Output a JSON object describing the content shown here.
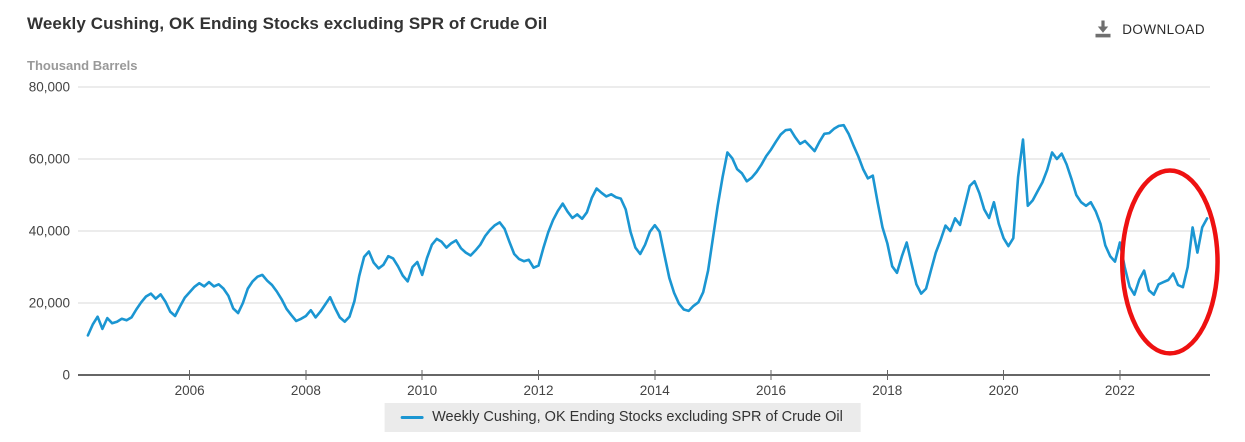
{
  "header": {
    "title": "Weekly Cushing, OK Ending Stocks excluding SPR of Crude Oil",
    "units_label": "Thousand Barrels",
    "download_label": "DOWNLOAD"
  },
  "colors": {
    "line": "#1b96d2",
    "annotation": "#ee1111",
    "grid": "#d8d8d8",
    "axis": "#666666",
    "tick_label": "#444444",
    "title": "#333333",
    "units": "#999999",
    "legend_bg": "#ebebeb",
    "legend_text": "#333333",
    "download_icon": "#6f6f6f"
  },
  "chart_data": {
    "type": "line",
    "title": "Weekly Cushing, OK Ending Stocks excluding SPR of Crude Oil",
    "xlabel": "",
    "ylabel": "Thousand Barrels",
    "grid": true,
    "legend_position": "bottom",
    "xlim": [
      2004.08,
      2023.55
    ],
    "ylim": [
      0,
      80000
    ],
    "y_ticks": [
      0,
      20000,
      40000,
      60000,
      80000
    ],
    "y_tick_labels": [
      "0",
      "20,000",
      "40,000",
      "60,000",
      "80,000"
    ],
    "x_ticks": [
      2006,
      2008,
      2010,
      2012,
      2014,
      2016,
      2018,
      2020,
      2022
    ],
    "x_start": 2004.25,
    "x_step": 0.0833333,
    "series": [
      {
        "name": "Weekly Cushing, OK Ending Stocks excluding SPR of Crude Oil",
        "values": [
          11000,
          14000,
          16200,
          12800,
          15800,
          14400,
          14800,
          15600,
          15200,
          16000,
          18200,
          20200,
          21800,
          22600,
          21200,
          22400,
          20400,
          17600,
          16400,
          19000,
          21500,
          23000,
          24500,
          25500,
          24600,
          25800,
          24600,
          25200,
          24000,
          22000,
          18500,
          17200,
          20000,
          24000,
          26000,
          27300,
          27800,
          26200,
          25000,
          23200,
          21000,
          18400,
          16600,
          15000,
          15600,
          16400,
          18000,
          16000,
          17600,
          19600,
          21600,
          18600,
          16000,
          14800,
          16200,
          20500,
          27500,
          32800,
          34300,
          31200,
          29600,
          30600,
          33000,
          32400,
          30200,
          27600,
          26000,
          30000,
          31400,
          27800,
          32500,
          36200,
          37800,
          37000,
          35400,
          36600,
          37400,
          35200,
          34000,
          33200,
          34600,
          36200,
          38600,
          40300,
          41600,
          42400,
          40600,
          37000,
          33600,
          32200,
          31600,
          32000,
          29800,
          30400,
          35200,
          39600,
          43000,
          45600,
          47600,
          45400,
          43600,
          44600,
          43400,
          45200,
          49200,
          51800,
          50600,
          49600,
          50200,
          49400,
          49000,
          46000,
          39800,
          35400,
          33600,
          36200,
          39800,
          41600,
          39800,
          33400,
          27000,
          22800,
          19800,
          18200,
          17800,
          19200,
          20200,
          23000,
          29000,
          38000,
          47000,
          55000,
          61800,
          60200,
          57200,
          56000,
          53800,
          54800,
          56400,
          58400,
          60800,
          62600,
          64800,
          66800,
          68000,
          68200,
          66000,
          64200,
          65000,
          63600,
          62200,
          64800,
          67000,
          67200,
          68400,
          69200,
          69400,
          67000,
          63800,
          60800,
          57200,
          54600,
          55400,
          48000,
          41000,
          36600,
          30200,
          28400,
          33000,
          36800,
          31000,
          25200,
          22600,
          24000,
          29000,
          34000,
          37500,
          41500,
          40000,
          43500,
          41700,
          47000,
          52500,
          53800,
          50500,
          46000,
          43600,
          48000,
          42000,
          38000,
          35800,
          38000,
          55000,
          65400,
          47000,
          48500,
          51000,
          53500,
          57000,
          61800,
          60000,
          61500,
          58500,
          54500,
          50000,
          48000,
          47000,
          48000,
          45500,
          42000,
          36000,
          33000,
          31500,
          36800,
          30000,
          24500,
          22300,
          26500,
          29000,
          23500,
          22300,
          25200,
          25800,
          26400,
          28200,
          25000,
          24400,
          30000,
          41000,
          34000,
          41000,
          43500
        ]
      }
    ],
    "legend": [
      {
        "label": "Weekly Cushing, OK Ending Stocks excluding SPR of Crude Oil",
        "color": "#1b96d2"
      }
    ],
    "annotation": {
      "type": "ellipse",
      "x_center": 2022.86,
      "y_center": 31400,
      "rx_years": 0.82,
      "ry_value": 25400,
      "color": "#ee1111"
    }
  }
}
